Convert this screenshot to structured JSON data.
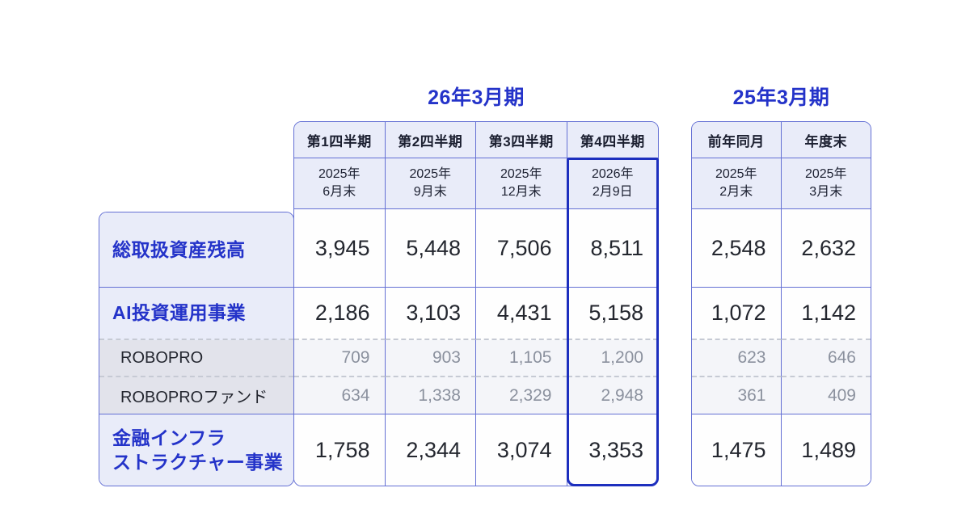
{
  "titles": {
    "fy26": "26年3月期",
    "fy25": "25年3月期"
  },
  "left_table": {
    "quarter_headers": [
      "第1四半期",
      "第2四半期",
      "第3四半期",
      "第4四半期"
    ],
    "date_headers": [
      [
        "2025年",
        "6月末"
      ],
      [
        "2025年",
        "9月末"
      ],
      [
        "2025年",
        "12月末"
      ],
      [
        "2026年",
        "2月9日"
      ]
    ],
    "highlighted_column_index": 3
  },
  "right_table": {
    "quarter_headers": [
      "前年同月",
      "年度末"
    ],
    "date_headers": [
      [
        "2025年",
        "2月末"
      ],
      [
        "2025年",
        "3月末"
      ]
    ]
  },
  "rows": [
    {
      "type": "primary",
      "label_lines": [
        "総取扱資産残高"
      ],
      "left_values": [
        "3,945",
        "5,448",
        "7,506",
        "8,511"
      ],
      "right_values": [
        "2,548",
        "2,632"
      ]
    },
    {
      "type": "primary",
      "label_lines": [
        "AI投資運用事業"
      ],
      "left_values": [
        "2,186",
        "3,103",
        "4,431",
        "5,158"
      ],
      "right_values": [
        "1,072",
        "1,142"
      ]
    },
    {
      "type": "sub",
      "label_lines": [
        "ROBOPRO"
      ],
      "left_values": [
        "709",
        "903",
        "1,105",
        "1,200"
      ],
      "right_values": [
        "623",
        "646"
      ]
    },
    {
      "type": "sub",
      "label_lines": [
        "ROBOPROファンド"
      ],
      "left_values": [
        "634",
        "1,338",
        "2,329",
        "2,948"
      ],
      "right_values": [
        "361",
        "409"
      ]
    },
    {
      "type": "primary",
      "label_lines": [
        "金融インフラ",
        "ストラクチャー事業"
      ],
      "left_values": [
        "1,758",
        "2,344",
        "3,074",
        "3,353"
      ],
      "right_values": [
        "1,475",
        "1,489"
      ]
    }
  ],
  "colors": {
    "accent_blue": "#2433c9",
    "border": "#6470d4",
    "highlight_border": "#1d2fbe",
    "header_bg": "#e9ecf9",
    "sub_label_bg": "#e2e3eb",
    "sub_data_bg": "#f4f5f9",
    "primary_value_text": "#24272f",
    "sub_value_text": "#8b919e"
  },
  "chart_data": {
    "type": "table",
    "title_groups": [
      "26年3月期",
      "25年3月期"
    ],
    "columns": [
      "第1四半期 2025年6月末",
      "第2四半期 2025年9月末",
      "第3四半期 2025年12月末",
      "第4四半期 2026年2月9日",
      "前年同月 2025年2月末",
      "年度末 2025年3月末"
    ],
    "rows": [
      {
        "label": "総取扱資産残高",
        "values": [
          3945,
          5448,
          7506,
          8511,
          2548,
          2632
        ]
      },
      {
        "label": "AI投資運用事業",
        "values": [
          2186,
          3103,
          4431,
          5158,
          1072,
          1142
        ]
      },
      {
        "label": "ROBOPRO",
        "values": [
          709,
          903,
          1105,
          1200,
          623,
          646
        ]
      },
      {
        "label": "ROBOPROファンド",
        "values": [
          634,
          1338,
          2329,
          2948,
          361,
          409
        ]
      },
      {
        "label": "金融インフラストラクチャー事業",
        "values": [
          1758,
          2344,
          3074,
          3353,
          1475,
          1489
        ]
      }
    ],
    "highlighted_column": "第4四半期 2026年2月9日"
  }
}
